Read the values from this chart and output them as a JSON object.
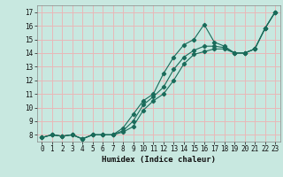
{
  "title": "",
  "xlabel": "Humidex (Indice chaleur)",
  "xlim": [
    -0.5,
    23.5
  ],
  "ylim": [
    7.5,
    17.5
  ],
  "xticks": [
    0,
    1,
    2,
    3,
    4,
    5,
    6,
    7,
    8,
    9,
    10,
    11,
    12,
    13,
    14,
    15,
    16,
    17,
    18,
    19,
    20,
    21,
    22,
    23
  ],
  "yticks": [
    8,
    9,
    10,
    11,
    12,
    13,
    14,
    15,
    16,
    17
  ],
  "bg_color": "#c8e8e0",
  "grid_color": "#e8b8b8",
  "line_color": "#1a6b5a",
  "lines": [
    {
      "x": [
        0,
        1,
        2,
        3,
        4,
        5,
        6,
        7,
        8,
        9,
        10,
        11,
        12,
        13,
        14,
        15,
        16,
        17,
        18,
        19,
        20,
        21,
        22,
        23
      ],
      "y": [
        7.8,
        8.0,
        7.9,
        8.0,
        7.7,
        8.0,
        8.0,
        8.0,
        8.5,
        9.5,
        10.5,
        11.0,
        12.5,
        13.7,
        14.6,
        15.0,
        16.1,
        14.8,
        14.5,
        14.0,
        14.0,
        14.3,
        15.8,
        17.0
      ]
    },
    {
      "x": [
        0,
        1,
        2,
        3,
        4,
        5,
        6,
        7,
        8,
        9,
        10,
        11,
        12,
        13,
        14,
        15,
        16,
        17,
        18,
        19,
        20,
        21,
        22,
        23
      ],
      "y": [
        7.8,
        8.0,
        7.9,
        8.0,
        7.7,
        8.0,
        8.0,
        8.0,
        8.3,
        9.0,
        10.2,
        10.8,
        11.5,
        12.8,
        13.7,
        14.2,
        14.5,
        14.5,
        14.4,
        14.0,
        14.0,
        14.3,
        15.8,
        17.0
      ]
    },
    {
      "x": [
        0,
        1,
        2,
        3,
        4,
        5,
        6,
        7,
        8,
        9,
        10,
        11,
        12,
        13,
        14,
        15,
        16,
        17,
        18,
        19,
        20,
        21,
        22,
        23
      ],
      "y": [
        7.8,
        8.0,
        7.9,
        8.0,
        7.7,
        8.0,
        8.0,
        8.0,
        8.2,
        8.6,
        9.8,
        10.5,
        11.0,
        12.0,
        13.2,
        13.9,
        14.1,
        14.3,
        14.3,
        14.0,
        14.0,
        14.3,
        15.8,
        17.0
      ]
    }
  ]
}
